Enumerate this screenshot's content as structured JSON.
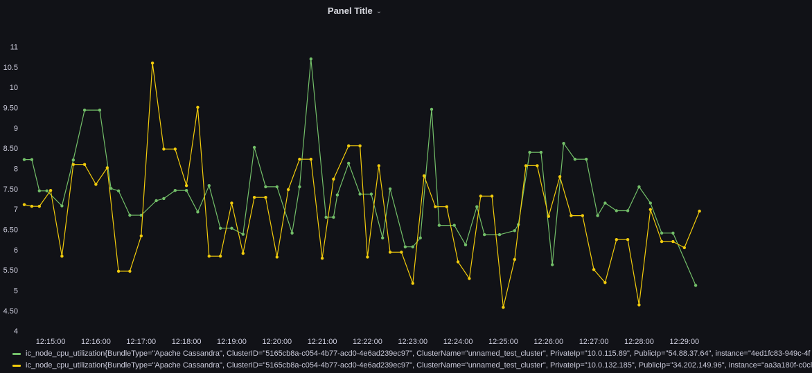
{
  "panel": {
    "title": "Panel Title"
  },
  "colors": {
    "green": "#73bf69",
    "yellow": "#f2cc0c"
  },
  "chart_data": {
    "type": "line",
    "title": "Panel Title",
    "ylim": [
      3.9,
      11.3
    ],
    "yticks": [
      "4",
      "4.50",
      "5",
      "5.50",
      "6",
      "6.50",
      "7",
      "7.50",
      "8",
      "8.50",
      "9",
      "9.50",
      "10",
      "10.5",
      "11"
    ],
    "xlim": [
      "12:14:25",
      "12:29:25"
    ],
    "xticks": [
      "12:15:00",
      "12:16:00",
      "12:17:00",
      "12:18:00",
      "12:19:00",
      "12:20:00",
      "12:21:00",
      "12:22:00",
      "12:23:00",
      "12:24:00",
      "12:25:00",
      "12:26:00",
      "12:27:00",
      "12:28:00",
      "12:29:00"
    ],
    "grid": false,
    "legend_position": "bottom",
    "series": [
      {
        "name": "ic_node_cpu_utilization{BundleType=\"Apache Cassandra\", ClusterID=\"5165cb8a-c054-4b77-acd0-4e6ad239ec97\", ClusterName=\"unnamed_test_cluster\", PrivateIp=\"10.0.115.89\", PublicIp=\"54.88.37.64\", instance=\"4ed1fc83-949c-4f",
        "color": "#73bf69",
        "points": [
          [
            "12:14:25",
            8.22
          ],
          [
            "12:14:35",
            8.22
          ],
          [
            "12:14:45",
            7.45
          ],
          [
            "12:14:55",
            7.45
          ],
          [
            "12:15:15",
            7.08
          ],
          [
            "12:15:30",
            8.21
          ],
          [
            "12:15:45",
            9.44
          ],
          [
            "12:16:05",
            9.44
          ],
          [
            "12:16:20",
            7.51
          ],
          [
            "12:16:30",
            7.45
          ],
          [
            "12:16:45",
            6.85
          ],
          [
            "12:17:00",
            6.85
          ],
          [
            "12:17:20",
            7.21
          ],
          [
            "12:17:30",
            7.26
          ],
          [
            "12:17:45",
            7.46
          ],
          [
            "12:18:00",
            7.46
          ],
          [
            "12:18:15",
            6.93
          ],
          [
            "12:18:30",
            7.58
          ],
          [
            "12:18:45",
            6.53
          ],
          [
            "12:19:00",
            6.53
          ],
          [
            "12:19:15",
            6.38
          ],
          [
            "12:19:30",
            8.52
          ],
          [
            "12:19:45",
            7.55
          ],
          [
            "12:20:00",
            7.55
          ],
          [
            "12:20:20",
            6.41
          ],
          [
            "12:20:30",
            7.55
          ],
          [
            "12:20:45",
            10.7
          ],
          [
            "12:21:05",
            6.8
          ],
          [
            "12:21:15",
            6.8
          ],
          [
            "12:21:20",
            7.35
          ],
          [
            "12:21:35",
            8.13
          ],
          [
            "12:21:50",
            7.37
          ],
          [
            "12:22:05",
            7.37
          ],
          [
            "12:22:20",
            6.29
          ],
          [
            "12:22:30",
            7.5
          ],
          [
            "12:22:50",
            6.07
          ],
          [
            "12:23:00",
            6.07
          ],
          [
            "12:23:10",
            6.29
          ],
          [
            "12:23:25",
            9.46
          ],
          [
            "12:23:35",
            6.6
          ],
          [
            "12:23:55",
            6.6
          ],
          [
            "12:24:10",
            6.12
          ],
          [
            "12:24:25",
            7.06
          ],
          [
            "12:24:35",
            6.37
          ],
          [
            "12:24:55",
            6.37
          ],
          [
            "12:25:15",
            6.47
          ],
          [
            "12:25:20",
            6.62
          ],
          [
            "12:25:35",
            8.4
          ],
          [
            "12:25:50",
            8.4
          ],
          [
            "12:26:05",
            5.63
          ],
          [
            "12:26:20",
            8.62
          ],
          [
            "12:26:35",
            8.23
          ],
          [
            "12:26:50",
            8.23
          ],
          [
            "12:27:05",
            6.84
          ],
          [
            "12:27:15",
            7.15
          ],
          [
            "12:27:30",
            6.96
          ],
          [
            "12:27:45",
            6.96
          ],
          [
            "12:28:00",
            7.55
          ],
          [
            "12:28:15",
            7.15
          ],
          [
            "12:28:30",
            6.41
          ],
          [
            "12:28:45",
            6.41
          ],
          [
            "12:29:15",
            5.12
          ]
        ]
      },
      {
        "name": "ic_node_cpu_utilization{BundleType=\"Apache Cassandra\", ClusterID=\"5165cb8a-c054-4b77-acd0-4e6ad239ec97\", ClusterName=\"unnamed_test_cluster\", PrivateIp=\"10.0.132.185\", PublicIp=\"34.202.149.96\", instance=\"aa3a180f-c0cl",
        "color": "#f2cc0c",
        "points": [
          [
            "12:14:25",
            7.11
          ],
          [
            "12:14:35",
            7.07
          ],
          [
            "12:14:45",
            7.07
          ],
          [
            "12:15:00",
            7.46
          ],
          [
            "12:15:15",
            5.84
          ],
          [
            "12:15:30",
            8.1
          ],
          [
            "12:15:45",
            8.1
          ],
          [
            "12:16:00",
            7.61
          ],
          [
            "12:16:15",
            8.02
          ],
          [
            "12:16:30",
            5.47
          ],
          [
            "12:16:45",
            5.47
          ],
          [
            "12:17:00",
            6.34
          ],
          [
            "12:17:15",
            10.6
          ],
          [
            "12:17:30",
            8.48
          ],
          [
            "12:17:45",
            8.48
          ],
          [
            "12:18:00",
            7.58
          ],
          [
            "12:18:15",
            9.51
          ],
          [
            "12:18:30",
            5.84
          ],
          [
            "12:18:45",
            5.84
          ],
          [
            "12:19:00",
            7.15
          ],
          [
            "12:19:15",
            5.91
          ],
          [
            "12:19:30",
            7.29
          ],
          [
            "12:19:45",
            7.29
          ],
          [
            "12:20:00",
            5.82
          ],
          [
            "12:20:15",
            7.48
          ],
          [
            "12:20:30",
            8.23
          ],
          [
            "12:20:45",
            8.23
          ],
          [
            "12:21:00",
            5.79
          ],
          [
            "12:21:15",
            7.74
          ],
          [
            "12:21:35",
            8.56
          ],
          [
            "12:21:50",
            8.56
          ],
          [
            "12:22:00",
            5.82
          ],
          [
            "12:22:15",
            8.07
          ],
          [
            "12:22:30",
            5.94
          ],
          [
            "12:22:45",
            5.94
          ],
          [
            "12:23:00",
            5.17
          ],
          [
            "12:23:15",
            7.82
          ],
          [
            "12:23:30",
            7.06
          ],
          [
            "12:23:45",
            7.06
          ],
          [
            "12:24:00",
            5.7
          ],
          [
            "12:24:15",
            5.29
          ],
          [
            "12:24:30",
            7.32
          ],
          [
            "12:24:45",
            7.32
          ],
          [
            "12:25:00",
            4.58
          ],
          [
            "12:25:15",
            5.76
          ],
          [
            "12:25:30",
            8.07
          ],
          [
            "12:25:45",
            8.07
          ],
          [
            "12:26:00",
            6.82
          ],
          [
            "12:26:15",
            7.8
          ],
          [
            "12:26:30",
            6.84
          ],
          [
            "12:26:45",
            6.84
          ],
          [
            "12:27:00",
            5.51
          ],
          [
            "12:27:15",
            5.19
          ],
          [
            "12:27:30",
            6.25
          ],
          [
            "12:27:45",
            6.25
          ],
          [
            "12:28:00",
            4.64
          ],
          [
            "12:28:15",
            6.99
          ],
          [
            "12:28:30",
            6.2
          ],
          [
            "12:28:45",
            6.2
          ],
          [
            "12:29:00",
            6.05
          ],
          [
            "12:29:20",
            6.95
          ]
        ]
      }
    ]
  }
}
